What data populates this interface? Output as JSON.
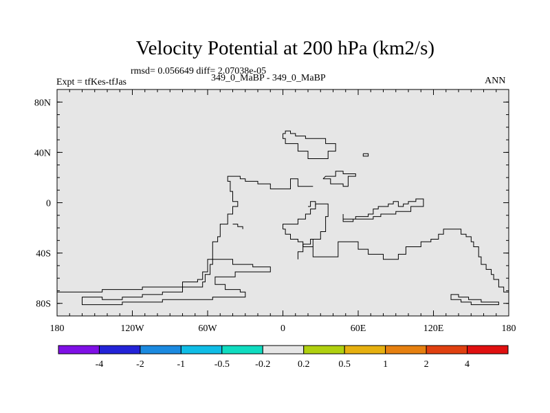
{
  "header": {
    "title": "Velocity Potential at 200 hPa (km2/s)",
    "rmsd_line": "rmsd= 0.056649 diff= 2.07038e-05",
    "subtitle": "349_0_MaBP - 349_0_MaBP",
    "left_label": "Expt = tfKes-tfJas",
    "right_label": "ANN"
  },
  "chart_data": {
    "type": "heatmap",
    "title": "Velocity Potential at 200 hPa (km2/s)",
    "subtitle": "349_0_MaBP - 349_0_MaBP",
    "projection": "cylindrical equidistant",
    "field_state": "uniform field within the -0.2 to 0.2 interval everywhere; black lines are coastline outlines",
    "field_color": "#e6e6e6",
    "xlim": [
      -180,
      180
    ],
    "ylim": [
      -90,
      90
    ],
    "x_ticks": [
      {
        "value": -180,
        "label": "180"
      },
      {
        "value": -120,
        "label": "120W"
      },
      {
        "value": -60,
        "label": "60W"
      },
      {
        "value": 0,
        "label": "0"
      },
      {
        "value": 60,
        "label": "60E"
      },
      {
        "value": 120,
        "label": "120E"
      },
      {
        "value": 180,
        "label": "180"
      }
    ],
    "y_ticks": [
      {
        "value": 80,
        "label": "80N"
      },
      {
        "value": 40,
        "label": "40N"
      },
      {
        "value": 0,
        "label": "0"
      },
      {
        "value": -40,
        "label": "40S"
      },
      {
        "value": -80,
        "label": "80S"
      }
    ],
    "colorbar": {
      "boundaries": [
        "-4",
        "-2",
        "-1",
        "-0.5",
        "-0.2",
        "0.2",
        "0.5",
        "1",
        "2",
        "4"
      ],
      "colors": [
        "#7f10e6",
        "#2323d8",
        "#1b8ae0",
        "#10bde6",
        "#10dcc0",
        "#e6e6e6",
        "#b0d010",
        "#e6b010",
        "#e68010",
        "#e04010",
        "#e01010"
      ]
    },
    "coastlines": [
      [
        [
          -180,
          -71
        ],
        [
          -144,
          -71
        ],
        [
          -144,
          -69
        ],
        [
          -112,
          -69
        ],
        [
          -112,
          -67
        ],
        [
          -80,
          -67
        ],
        [
          -80,
          -63
        ],
        [
          -68,
          -63
        ],
        [
          -68,
          -61
        ],
        [
          -64,
          -61
        ],
        [
          -64,
          -55
        ],
        [
          -60,
          -55
        ],
        [
          -60,
          -45
        ],
        [
          -56,
          -45
        ],
        [
          -56,
          -31
        ],
        [
          -52,
          -31
        ],
        [
          -52,
          -27
        ],
        [
          -50,
          -27
        ],
        [
          -50,
          -17
        ],
        [
          -44,
          -17
        ],
        [
          -44,
          -9
        ],
        [
          -40,
          -9
        ],
        [
          -40,
          -3
        ],
        [
          -36,
          -3
        ],
        [
          -36,
          1
        ],
        [
          -40,
          1
        ],
        [
          -40,
          9
        ],
        [
          -42,
          9
        ],
        [
          -42,
          17
        ],
        [
          -44,
          17
        ],
        [
          -44,
          21
        ],
        [
          -34,
          21
        ],
        [
          -34,
          19
        ],
        [
          -30,
          19
        ],
        [
          -30,
          17
        ],
        [
          -20,
          17
        ],
        [
          -20,
          15
        ],
        [
          -10,
          15
        ],
        [
          -10,
          11
        ],
        [
          6,
          11
        ],
        [
          6,
          19
        ],
        [
          12,
          19
        ],
        [
          12,
          13
        ],
        [
          24,
          13
        ]
      ],
      [
        [
          -160,
          -79
        ],
        [
          -160,
          -75
        ],
        [
          -144,
          -75
        ],
        [
          -144,
          -77
        ],
        [
          -128,
          -77
        ],
        [
          -128,
          -75
        ],
        [
          -112,
          -75
        ],
        [
          -112,
          -73
        ],
        [
          -96,
          -73
        ],
        [
          -96,
          -71
        ],
        [
          -80,
          -71
        ],
        [
          -80,
          -67
        ],
        [
          -64,
          -67
        ],
        [
          -64,
          -63
        ],
        [
          -62,
          -63
        ],
        [
          -62,
          -57
        ],
        [
          -58,
          -57
        ],
        [
          -58,
          -49
        ],
        [
          -56,
          -49
        ],
        [
          -56,
          -45
        ],
        [
          -40,
          -45
        ],
        [
          -40,
          -49
        ],
        [
          -24,
          -49
        ],
        [
          -24,
          -51
        ],
        [
          -10,
          -51
        ],
        [
          -10,
          -55
        ],
        [
          -38,
          -55
        ],
        [
          -38,
          -59
        ],
        [
          -54,
          -59
        ],
        [
          -54,
          -65
        ],
        [
          -46,
          -65
        ],
        [
          -46,
          -69
        ],
        [
          -34,
          -69
        ],
        [
          -34,
          -71
        ],
        [
          -30,
          -71
        ],
        [
          -30,
          -75
        ],
        [
          -56,
          -75
        ],
        [
          -56,
          -77
        ],
        [
          -96,
          -77
        ],
        [
          -96,
          -79
        ],
        [
          -128,
          -79
        ],
        [
          -128,
          -81
        ],
        [
          -160,
          -81
        ],
        [
          -160,
          -79
        ]
      ],
      [
        [
          -40,
          -17
        ],
        [
          -36,
          -17
        ],
        [
          -36,
          -19
        ],
        [
          -32,
          -19
        ],
        [
          -32,
          -21
        ]
      ],
      [
        [
          0,
          -21
        ],
        [
          2,
          -21
        ],
        [
          2,
          -25
        ],
        [
          6,
          -25
        ],
        [
          6,
          -29
        ],
        [
          12,
          -29
        ],
        [
          12,
          -31
        ],
        [
          16,
          -31
        ],
        [
          16,
          -35
        ],
        [
          24,
          -35
        ],
        [
          24,
          -29
        ],
        [
          30,
          -29
        ],
        [
          30,
          -23
        ],
        [
          34,
          -23
        ],
        [
          34,
          -11
        ],
        [
          36,
          -11
        ],
        [
          36,
          -1
        ],
        [
          26,
          -1
        ],
        [
          26,
          -5
        ],
        [
          22,
          -5
        ],
        [
          22,
          -9
        ],
        [
          18,
          -9
        ],
        [
          18,
          -13
        ],
        [
          12,
          -13
        ],
        [
          12,
          -17
        ],
        [
          0,
          -17
        ],
        [
          0,
          -21
        ]
      ],
      [
        [
          20,
          -3
        ],
        [
          22,
          -3
        ],
        [
          22,
          1
        ],
        [
          26,
          1
        ],
        [
          26,
          -3
        ]
      ],
      [
        [
          0,
          55
        ],
        [
          2,
          55
        ],
        [
          2,
          57
        ],
        [
          6,
          57
        ],
        [
          6,
          55
        ],
        [
          10,
          55
        ],
        [
          10,
          53
        ],
        [
          18,
          53
        ],
        [
          18,
          51
        ],
        [
          34,
          51
        ],
        [
          34,
          47
        ],
        [
          42,
          47
        ],
        [
          42,
          41
        ],
        [
          36,
          41
        ],
        [
          36,
          35
        ],
        [
          20,
          35
        ],
        [
          20,
          41
        ],
        [
          12,
          41
        ],
        [
          12,
          47
        ],
        [
          2,
          47
        ],
        [
          2,
          51
        ],
        [
          0,
          51
        ],
        [
          0,
          55
        ]
      ],
      [
        [
          32,
          19
        ],
        [
          38,
          19
        ],
        [
          38,
          15
        ],
        [
          48,
          15
        ],
        [
          48,
          13
        ],
        [
          52,
          13
        ],
        [
          52,
          21
        ],
        [
          58,
          21
        ],
        [
          58,
          23
        ],
        [
          48,
          23
        ],
        [
          48,
          25
        ],
        [
          42,
          25
        ],
        [
          42,
          21
        ],
        [
          34,
          21
        ],
        [
          32,
          19
        ]
      ],
      [
        [
          64,
          39
        ],
        [
          68,
          39
        ],
        [
          68,
          37
        ],
        [
          64,
          37
        ],
        [
          64,
          39
        ]
      ],
      [
        [
          48,
          -9
        ],
        [
          48,
          -13
        ],
        [
          58,
          -13
        ],
        [
          58,
          -11
        ],
        [
          68,
          -11
        ],
        [
          68,
          -9
        ],
        [
          72,
          -9
        ],
        [
          72,
          -5
        ],
        [
          76,
          -5
        ],
        [
          76,
          -3
        ],
        [
          84,
          -3
        ],
        [
          84,
          -1
        ],
        [
          88,
          -1
        ],
        [
          88,
          1
        ],
        [
          92,
          1
        ],
        [
          92,
          -3
        ],
        [
          96,
          -3
        ],
        [
          96,
          -1
        ],
        [
          100,
          -1
        ],
        [
          100,
          1
        ],
        [
          106,
          1
        ],
        [
          106,
          3
        ],
        [
          112,
          3
        ],
        [
          112,
          -3
        ],
        [
          102,
          -3
        ],
        [
          102,
          -7
        ],
        [
          90,
          -7
        ],
        [
          90,
          -9
        ],
        [
          78,
          -9
        ],
        [
          78,
          -11
        ],
        [
          72,
          -11
        ],
        [
          72,
          -13
        ],
        [
          56,
          -13
        ],
        [
          56,
          -15
        ],
        [
          48,
          -15
        ],
        [
          48,
          -9
        ]
      ],
      [
        [
          12,
          -45
        ],
        [
          12,
          -43
        ],
        [
          12,
          -39
        ],
        [
          16,
          -39
        ],
        [
          16,
          -33
        ],
        [
          22,
          -33
        ],
        [
          22,
          -29
        ],
        [
          24,
          -29
        ]
      ],
      [
        [
          24,
          -35
        ],
        [
          24,
          -43
        ],
        [
          44,
          -43
        ],
        [
          44,
          -31
        ],
        [
          60,
          -31
        ],
        [
          60,
          -37
        ],
        [
          68,
          -37
        ],
        [
          68,
          -41
        ],
        [
          80,
          -41
        ],
        [
          80,
          -45
        ],
        [
          92,
          -45
        ],
        [
          92,
          -41
        ],
        [
          98,
          -41
        ],
        [
          98,
          -35
        ],
        [
          110,
          -35
        ],
        [
          110,
          -31
        ],
        [
          118,
          -31
        ],
        [
          118,
          -29
        ],
        [
          124,
          -29
        ],
        [
          124,
          -25
        ],
        [
          128,
          -25
        ],
        [
          128,
          -21
        ],
        [
          142,
          -21
        ],
        [
          142,
          -25
        ],
        [
          146,
          -25
        ],
        [
          146,
          -27
        ],
        [
          150,
          -27
        ],
        [
          150,
          -31
        ],
        [
          152,
          -31
        ],
        [
          152,
          -35
        ],
        [
          156,
          -35
        ],
        [
          156,
          -43
        ],
        [
          158,
          -43
        ],
        [
          158,
          -49
        ],
        [
          162,
          -49
        ],
        [
          162,
          -53
        ],
        [
          166,
          -53
        ],
        [
          166,
          -57
        ],
        [
          168,
          -57
        ],
        [
          168,
          -61
        ],
        [
          172,
          -61
        ],
        [
          172,
          -67
        ],
        [
          176,
          -67
        ],
        [
          176,
          -71
        ],
        [
          180,
          -71
        ]
      ],
      [
        [
          134,
          -75
        ],
        [
          134,
          -73
        ],
        [
          140,
          -73
        ],
        [
          140,
          -75
        ],
        [
          148,
          -75
        ],
        [
          148,
          -77
        ],
        [
          158,
          -77
        ],
        [
          158,
          -79
        ],
        [
          172,
          -79
        ],
        [
          172,
          -81
        ],
        [
          150,
          -81
        ],
        [
          150,
          -79
        ],
        [
          142,
          -79
        ],
        [
          142,
          -77
        ],
        [
          134,
          -77
        ],
        [
          134,
          -75
        ]
      ]
    ]
  }
}
